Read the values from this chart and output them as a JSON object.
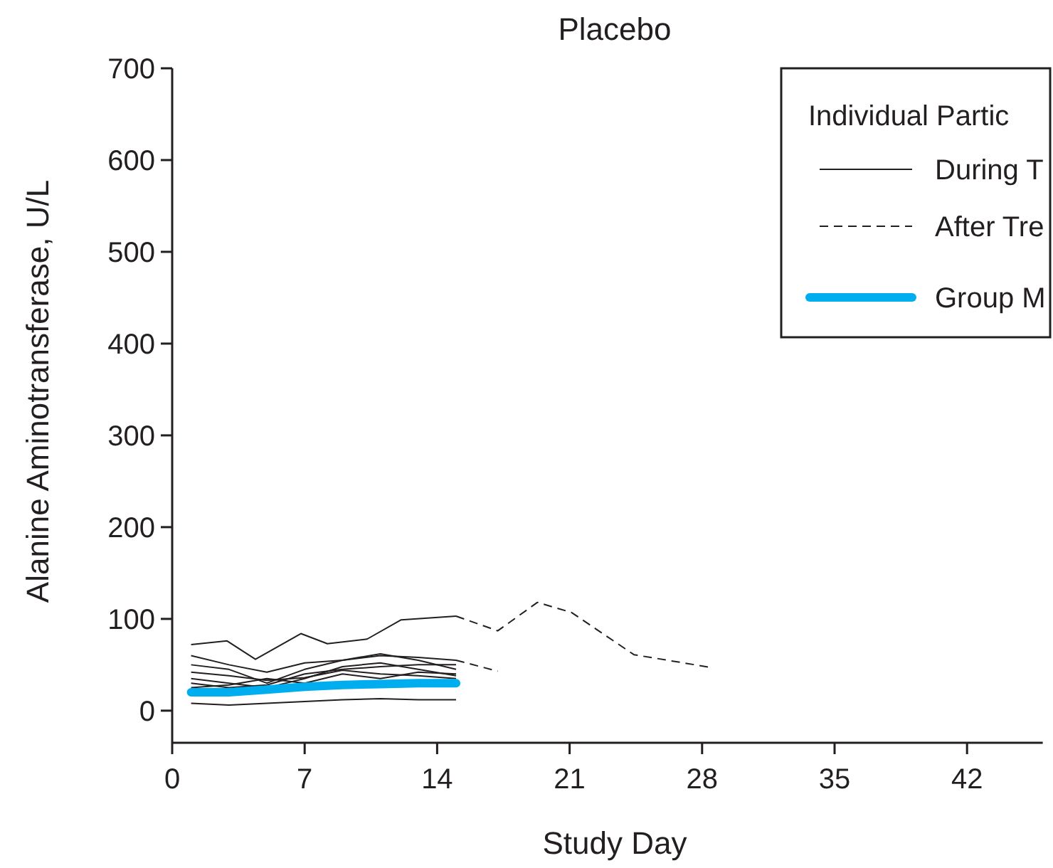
{
  "chart_data": {
    "type": "line",
    "title": "Placebo",
    "xlabel": "Study Day",
    "ylabel": "Alanine Aminotransferase, U/L",
    "legend_title": "Individual Partic",
    "legend": "top right",
    "xlim": [
      0,
      46
    ],
    "xticks": [
      0,
      7,
      14,
      21,
      28,
      35,
      42
    ],
    "ylim": [
      -35,
      700
    ],
    "yticks": [
      0,
      100,
      200,
      300,
      400,
      500,
      600,
      700
    ],
    "series": [
      {
        "name": "During T",
        "color": "#231f20",
        "line_style": "solid",
        "x": [
          1,
          2.9,
          4.4,
          6.8,
          8.2,
          10.3,
          12.1,
          15
        ],
        "values": [
          72,
          76,
          56,
          84,
          73,
          78,
          99,
          103
        ]
      },
      {
        "name": "After Tre",
        "color": "#231f20",
        "line_style": "dashed",
        "x": [
          15,
          17.2,
          19.3,
          21.1,
          24.4,
          28.5
        ],
        "values": [
          103,
          87,
          118,
          107,
          61,
          47
        ]
      },
      {
        "color": "#231f20",
        "line_style": "solid",
        "x": [
          1,
          3,
          5,
          7,
          9,
          11,
          13,
          15
        ],
        "values": [
          60,
          50,
          42,
          52,
          55,
          60,
          58,
          55
        ]
      },
      {
        "color": "#231f20",
        "line_style": "dashed",
        "x": [
          15,
          17.2
        ],
        "values": [
          55,
          43
        ]
      },
      {
        "color": "#231f20",
        "line_style": "solid",
        "x": [
          1,
          3,
          5,
          7,
          9,
          11,
          13,
          15
        ],
        "values": [
          50,
          45,
          30,
          45,
          55,
          62,
          55,
          45
        ]
      },
      {
        "color": "#231f20",
        "line_style": "solid",
        "x": [
          1,
          3,
          5,
          7,
          9,
          11,
          13,
          15
        ],
        "values": [
          30,
          25,
          28,
          40,
          45,
          48,
          50,
          50
        ]
      },
      {
        "color": "#231f20",
        "line_style": "solid",
        "x": [
          1,
          3,
          5,
          7,
          9,
          11,
          13,
          15
        ],
        "values": [
          25,
          28,
          35,
          30,
          40,
          35,
          42,
          40
        ]
      },
      {
        "color": "#231f20",
        "line_style": "solid",
        "x": [
          1,
          3,
          5,
          7,
          9,
          11,
          13,
          15
        ],
        "values": [
          35,
          30,
          25,
          35,
          48,
          52,
          45,
          38
        ]
      },
      {
        "color": "#231f20",
        "line_style": "solid",
        "x": [
          1,
          3,
          5,
          7,
          9,
          11,
          13,
          15
        ],
        "values": [
          42,
          38,
          33,
          36,
          44,
          40,
          38,
          35
        ]
      },
      {
        "color": "#231f20",
        "line_style": "solid",
        "x": [
          1,
          3,
          5,
          7,
          9,
          11,
          13,
          15
        ],
        "values": [
          8,
          6,
          8,
          10,
          12,
          13,
          12,
          12
        ]
      },
      {
        "name": "Group M",
        "color": "#00aeef",
        "line_style": "solid",
        "x": [
          1,
          3,
          5,
          7,
          9,
          11,
          13,
          15
        ],
        "values": [
          20,
          20,
          23,
          26,
          28,
          29,
          30,
          30
        ]
      }
    ]
  }
}
